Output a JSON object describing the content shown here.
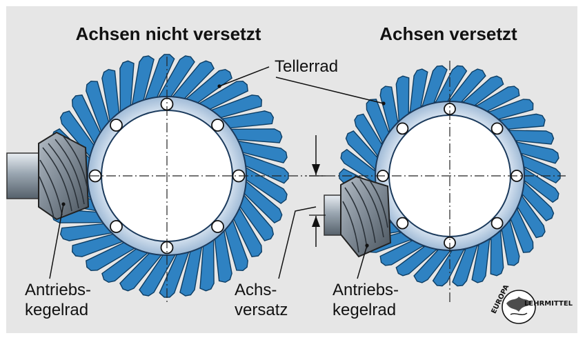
{
  "left_title": "Achsen nicht versetzt",
  "right_title": "Achsen versetzt",
  "label_ring_gear": "Tellerrad",
  "left_pinion_label": [
    "Antriebs-",
    "kegelrad"
  ],
  "right_pinion_label": [
    "Antriebs-",
    "kegelrad"
  ],
  "offset_label": [
    "Achs-",
    "versatz"
  ],
  "logo": {
    "top": "EUROPA",
    "bottom": "LEHRMITTEL"
  },
  "colors": {
    "background": "#e6e6e6",
    "tooth_blue": "#2f82c2",
    "tooth_dark": "#0d3d63",
    "hub": "#b9cfe6",
    "pinion": "#8a95a0"
  }
}
